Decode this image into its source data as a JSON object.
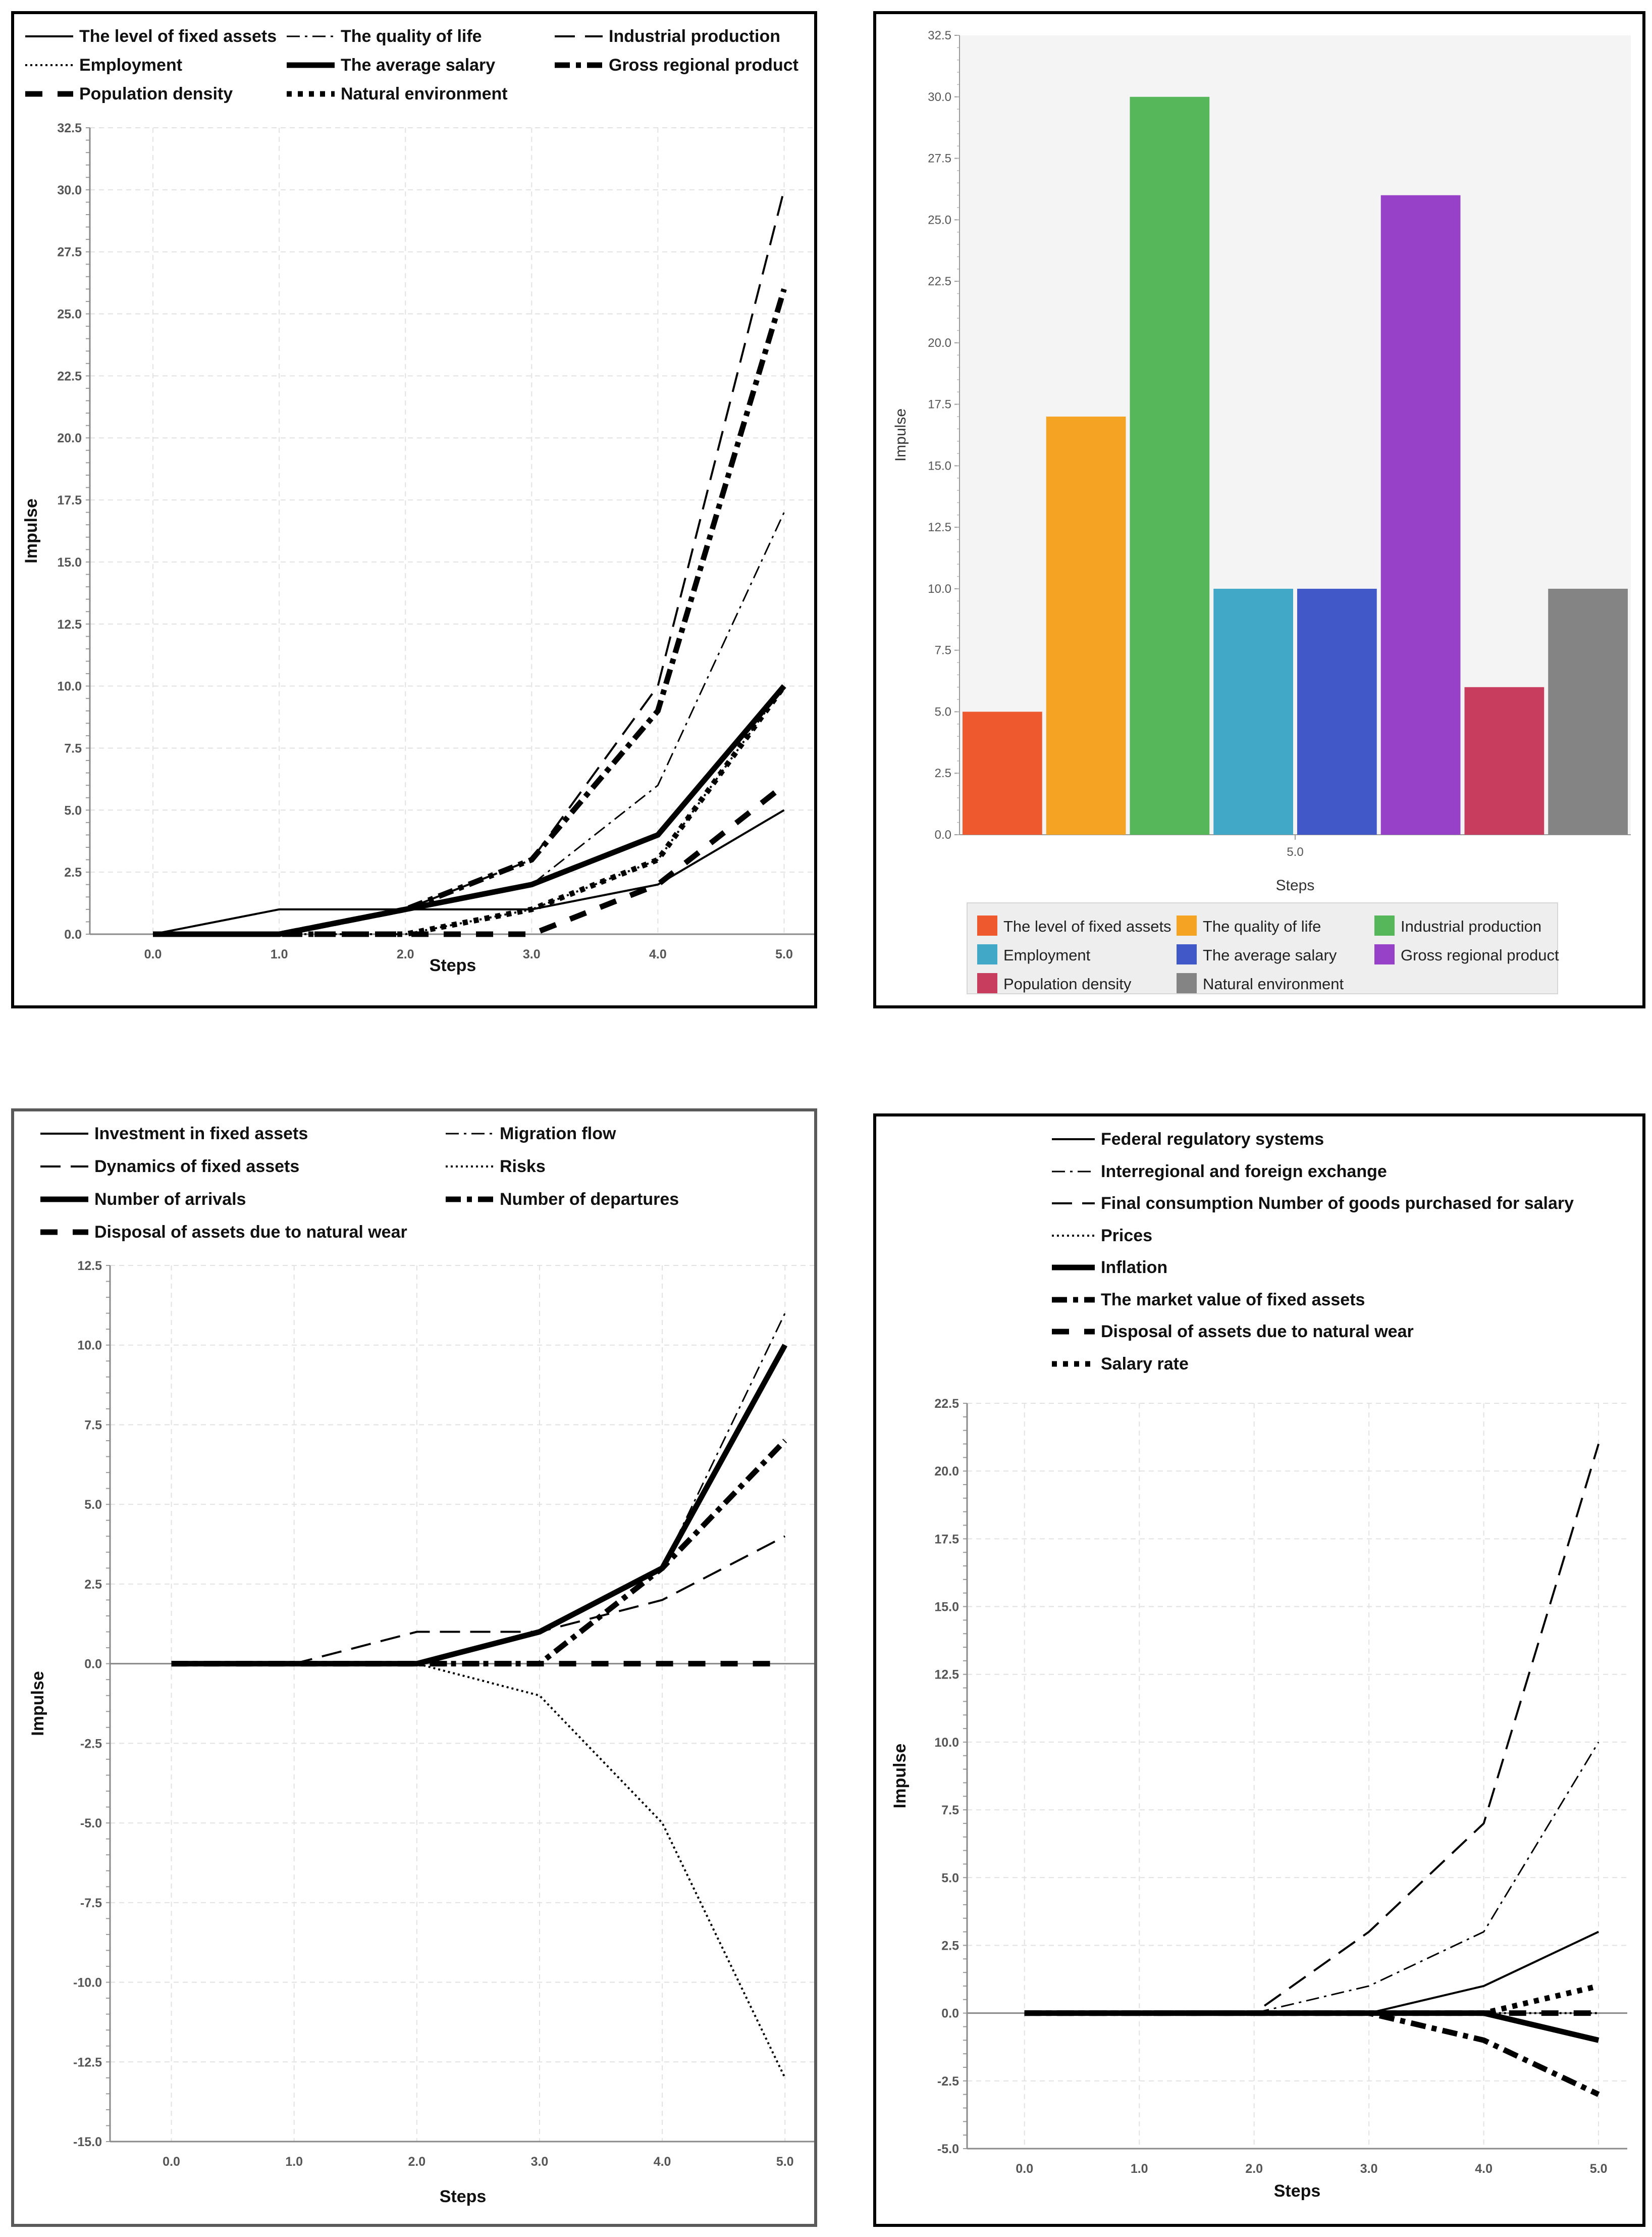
{
  "chart_data": [
    {
      "type": "line",
      "title": "",
      "xlabel": "Steps",
      "ylabel": "Impulse",
      "x": [
        0,
        1,
        2,
        3,
        4,
        5
      ],
      "x_ticks": [
        "0.0",
        "1.0",
        "2.0",
        "3.0",
        "4.0",
        "5.0"
      ],
      "ylim": [
        0,
        32.5
      ],
      "y_ticks": [
        "0.0",
        "2.5",
        "5.0",
        "7.5",
        "10.0",
        "12.5",
        "15.0",
        "17.5",
        "20.0",
        "22.5",
        "25.0",
        "27.5",
        "30.0",
        "32.5"
      ],
      "grid": true,
      "legend_position": "top",
      "series": [
        {
          "name": "The level of fixed assets",
          "style": "solid",
          "values": [
            0,
            1,
            1,
            1,
            2,
            5
          ]
        },
        {
          "name": "The quality of life",
          "style": "dashdot",
          "values": [
            0,
            0,
            1,
            2,
            6,
            17
          ]
        },
        {
          "name": "Industrial production",
          "style": "dashed",
          "values": [
            0,
            0,
            1,
            3,
            10,
            30
          ]
        },
        {
          "name": "Employment",
          "style": "dotted",
          "values": [
            0,
            0,
            0,
            1,
            3,
            10
          ]
        },
        {
          "name": "The average salary",
          "style": "thick",
          "values": [
            0,
            0,
            1,
            2,
            4,
            10
          ]
        },
        {
          "name": "Gross  regional product",
          "style": "thickdashdot",
          "values": [
            0,
            0,
            1,
            3,
            9,
            26
          ]
        },
        {
          "name": "Population density",
          "style": "thickdashed",
          "values": [
            0,
            0,
            0,
            0,
            2,
            6
          ]
        },
        {
          "name": "Natural environment",
          "style": "thickdotted",
          "values": [
            0,
            0,
            0,
            1,
            3,
            10
          ]
        }
      ]
    },
    {
      "type": "bar",
      "title": "",
      "xlabel": "Steps",
      "ylabel": "Impulse",
      "categories": [
        "5.0"
      ],
      "ylim": [
        0,
        32.5
      ],
      "y_ticks": [
        "0.0",
        "2.5",
        "5.0",
        "7.5",
        "10.0",
        "12.5",
        "15.0",
        "17.5",
        "20.0",
        "22.5",
        "25.0",
        "27.5",
        "30.0",
        "32.5"
      ],
      "grid": false,
      "legend_position": "bottom",
      "series": [
        {
          "name": "The level of fixed assets",
          "color": "#ee5a2e",
          "values": [
            5
          ]
        },
        {
          "name": "The quality of life",
          "color": "#f5a322",
          "values": [
            17
          ]
        },
        {
          "name": "Industrial production",
          "color": "#56b65a",
          "values": [
            30
          ]
        },
        {
          "name": "Employment",
          "color": "#41a8c8",
          "values": [
            10
          ]
        },
        {
          "name": "The average salary",
          "color": "#4159c8",
          "values": [
            10
          ]
        },
        {
          "name": "Gross  regional product",
          "color": "#9641c8",
          "values": [
            26
          ]
        },
        {
          "name": "Population density",
          "color": "#c83d5e",
          "values": [
            6
          ]
        },
        {
          "name": "Natural environment",
          "color": "#848484",
          "values": [
            10
          ]
        }
      ]
    },
    {
      "type": "line",
      "title": "",
      "xlabel": "Steps",
      "ylabel": "Impulse",
      "x": [
        0,
        1,
        2,
        3,
        4,
        5
      ],
      "x_ticks": [
        "0.0",
        "1.0",
        "2.0",
        "3.0",
        "4.0",
        "5.0"
      ],
      "ylim": [
        -15,
        12.5
      ],
      "y_ticks": [
        "-15.0",
        "-12.5",
        "-10.0",
        "-7.5",
        "-5.0",
        "-2.5",
        "0.0",
        "2.5",
        "5.0",
        "7.5",
        "10.0",
        "12.5"
      ],
      "grid": true,
      "legend_position": "top",
      "series": [
        {
          "name": "Investment in fixed assets",
          "style": "solid",
          "values": [
            0,
            0,
            0,
            1,
            3,
            10
          ]
        },
        {
          "name": "Migration flow",
          "style": "dashdot",
          "values": [
            0,
            0,
            0,
            1,
            3,
            11
          ]
        },
        {
          "name": "Dynamics of  fixed assets",
          "style": "dashed",
          "values": [
            0,
            0,
            1,
            1,
            2,
            4
          ]
        },
        {
          "name": "Risks",
          "style": "dotted",
          "values": [
            0,
            0,
            0,
            -1,
            -5,
            -13
          ]
        },
        {
          "name": "Number of arrivals",
          "style": "thick",
          "values": [
            0,
            0,
            0,
            1,
            3,
            10
          ]
        },
        {
          "name": "Number of departures",
          "style": "thickdashdot",
          "values": [
            0,
            0,
            0,
            0,
            3,
            7
          ]
        },
        {
          "name": "Disposal of  assets due to natural wear",
          "style": "thickdashed",
          "values": [
            0,
            0,
            0,
            0,
            0,
            0
          ]
        }
      ]
    },
    {
      "type": "line",
      "title": "",
      "xlabel": "Steps",
      "ylabel": "Impulse",
      "x": [
        0,
        1,
        2,
        3,
        4,
        5
      ],
      "x_ticks": [
        "0.0",
        "1.0",
        "2.0",
        "3.0",
        "4.0",
        "5.0"
      ],
      "ylim": [
        -5,
        22.5
      ],
      "y_ticks": [
        "-5.0",
        "-2.5",
        "0.0",
        "2.5",
        "5.0",
        "7.5",
        "10.0",
        "12.5",
        "15.0",
        "17.5",
        "20.0",
        "22.5"
      ],
      "grid": true,
      "legend_position": "top",
      "series": [
        {
          "name": "Federal regulatory systems",
          "style": "solid",
          "values": [
            0,
            0,
            0,
            0,
            1,
            3
          ]
        },
        {
          "name": "Interregional and foreign exchange",
          "style": "dashdot",
          "values": [
            0,
            0,
            0,
            1,
            3,
            10
          ]
        },
        {
          "name": "Final consumption Number of goods purchased for salary",
          "style": "dashed",
          "values": [
            0,
            0,
            0,
            3,
            7,
            21
          ]
        },
        {
          "name": "Prices",
          "style": "dotted",
          "values": [
            0,
            0,
            0,
            0,
            0,
            0
          ]
        },
        {
          "name": "Inflation",
          "style": "thick",
          "values": [
            0,
            0,
            0,
            0,
            0,
            -1
          ]
        },
        {
          "name": "The market value of fixed assets",
          "style": "thickdashdot",
          "values": [
            0,
            0,
            0,
            0,
            -1,
            -3
          ]
        },
        {
          "name": "Disposal of  assets due to natural wear",
          "style": "thickdashed",
          "values": [
            0,
            0,
            0,
            0,
            0,
            0
          ]
        },
        {
          "name": "Salary rate",
          "style": "thickdotted",
          "values": [
            0,
            0,
            0,
            0,
            0,
            1
          ]
        }
      ]
    }
  ]
}
